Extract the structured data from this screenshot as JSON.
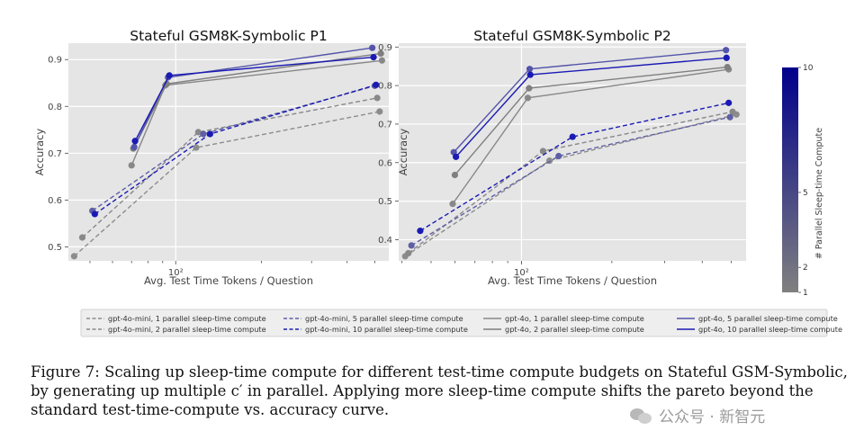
{
  "chart_data": [
    {
      "type": "line",
      "title": "Stateful GSM8K-Symbolic P1",
      "xlabel": "Avg. Test Time Tokens / Question",
      "ylabel": "Accuracy",
      "xscale": "log",
      "xlim": [
        42,
        560
      ],
      "ylim": [
        0.47,
        0.935
      ],
      "yticks": [
        0.5,
        0.6,
        0.7,
        0.8,
        0.9
      ],
      "ytick_labels": [
        "0.5",
        "0.6",
        "0.7",
        "0.8",
        "0.9"
      ],
      "xticks": [
        100
      ],
      "xtick_labels": [
        "10²"
      ],
      "grid": true,
      "series": [
        {
          "name": "gpt-4o-mini, 1 parallel sleep-time compute",
          "style": "dashed",
          "parallel": 1,
          "color": "#8c8c8c",
          "x": [
            44,
            118,
            520
          ],
          "y": [
            0.48,
            0.712,
            0.789
          ]
        },
        {
          "name": "gpt-4o-mini, 2 parallel sleep-time compute",
          "style": "dashed",
          "parallel": 2,
          "color": "#888888",
          "x": [
            47,
            120,
            510
          ],
          "y": [
            0.52,
            0.745,
            0.818
          ]
        },
        {
          "name": "gpt-4o-mini, 5 parallel sleep-time compute",
          "style": "dashed",
          "parallel": 5,
          "color": "#5f5fa6",
          "x": [
            51,
            125,
            500
          ],
          "y": [
            0.577,
            0.741,
            0.844
          ]
        },
        {
          "name": "gpt-4o-mini, 10 parallel sleep-time compute",
          "style": "dashed",
          "parallel": 10,
          "color": "#1a1ab4",
          "x": [
            52,
            132,
            505
          ],
          "y": [
            0.57,
            0.741,
            0.846
          ]
        },
        {
          "name": "gpt-4o, 1 parallel sleep-time compute",
          "style": "solid",
          "parallel": 1,
          "color": "#888888",
          "x": [
            70,
            92,
            530
          ],
          "y": [
            0.674,
            0.845,
            0.898
          ]
        },
        {
          "name": "gpt-4o, 2 parallel sleep-time compute",
          "style": "solid",
          "parallel": 2,
          "color": "#7f7f7f",
          "x": [
            71,
            93,
            525
          ],
          "y": [
            0.71,
            0.848,
            0.913
          ]
        },
        {
          "name": "gpt-4o, 5 parallel sleep-time compute",
          "style": "solid",
          "parallel": 5,
          "color": "#5454aa",
          "x": [
            71.5,
            94,
            490
          ],
          "y": [
            0.713,
            0.862,
            0.925
          ]
        },
        {
          "name": "gpt-4o, 10 parallel sleep-time compute",
          "style": "solid",
          "parallel": 10,
          "color": "#1a1ab4",
          "x": [
            72,
            95,
            495
          ],
          "y": [
            0.726,
            0.866,
            0.905
          ]
        }
      ]
    },
    {
      "type": "line",
      "title": "Stateful GSM8K-Symbolic P2",
      "xlabel": "Avg. Test Time Tokens / Question",
      "ylabel": "Accuracy",
      "xscale": "log",
      "xlim": [
        39,
        560
      ],
      "ylim": [
        0.345,
        0.91
      ],
      "yticks": [
        0.4,
        0.5,
        0.6,
        0.7,
        0.8,
        0.9
      ],
      "ytick_labels": [
        "0.4",
        "0.5",
        "0.6",
        "0.7",
        "0.8",
        "0.9"
      ],
      "xticks": [
        100
      ],
      "xtick_labels": [
        "10²"
      ],
      "grid": true,
      "series": [
        {
          "name": "gpt-4o-mini, 1 parallel sleep-time compute",
          "style": "dashed",
          "parallel": 1,
          "color": "#8c8c8c",
          "x": [
            41,
            124,
            520
          ],
          "y": [
            0.357,
            0.605,
            0.725
          ]
        },
        {
          "name": "gpt-4o-mini, 2 parallel sleep-time compute",
          "style": "dashed",
          "parallel": 2,
          "color": "#888888",
          "x": [
            42,
            118,
            505
          ],
          "y": [
            0.365,
            0.63,
            0.732
          ]
        },
        {
          "name": "gpt-4o-mini, 5 parallel sleep-time compute",
          "style": "dashed",
          "parallel": 5,
          "color": "#5f5fa6",
          "x": [
            43,
            133,
            495
          ],
          "y": [
            0.385,
            0.617,
            0.718
          ]
        },
        {
          "name": "gpt-4o-mini, 10 parallel sleep-time compute",
          "style": "dashed",
          "parallel": 10,
          "color": "#1a1ab4",
          "x": [
            46,
            148,
            490
          ],
          "y": [
            0.423,
            0.667,
            0.755
          ]
        },
        {
          "name": "gpt-4o, 1 parallel sleep-time compute",
          "style": "solid",
          "parallel": 1,
          "color": "#888888",
          "x": [
            59,
            105,
            490
          ],
          "y": [
            0.493,
            0.768,
            0.842
          ]
        },
        {
          "name": "gpt-4o, 2 parallel sleep-time compute",
          "style": "solid",
          "parallel": 2,
          "color": "#7f7f7f",
          "x": [
            60,
            106,
            485
          ],
          "y": [
            0.568,
            0.793,
            0.848
          ]
        },
        {
          "name": "gpt-4o, 5 parallel sleep-time compute",
          "style": "solid",
          "parallel": 5,
          "color": "#5454aa",
          "x": [
            59.5,
            106.5,
            480
          ],
          "y": [
            0.627,
            0.843,
            0.892
          ]
        },
        {
          "name": "gpt-4o, 10 parallel sleep-time compute",
          "style": "solid",
          "parallel": 10,
          "color": "#1a1ab4",
          "x": [
            60.5,
            107,
            482
          ],
          "y": [
            0.615,
            0.828,
            0.872
          ]
        }
      ]
    }
  ],
  "legend": {
    "placement": "bottom-center",
    "items": [
      {
        "label": "gpt-4o-mini, 1 parallel sleep-time compute",
        "style": "dashed",
        "color": "#8c8c8c"
      },
      {
        "label": "gpt-4o-mini, 2 parallel sleep-time compute",
        "style": "dashed",
        "color": "#888888"
      },
      {
        "label": "gpt-4o-mini, 5 parallel sleep-time compute",
        "style": "dashed",
        "color": "#5f5fa6"
      },
      {
        "label": "gpt-4o-mini, 10 parallel sleep-time compute",
        "style": "dashed",
        "color": "#1a1ab4"
      },
      {
        "label": "gpt-4o, 1 parallel sleep-time compute",
        "style": "solid",
        "color": "#888888"
      },
      {
        "label": "gpt-4o, 2 parallel sleep-time compute",
        "style": "solid",
        "color": "#7f7f7f"
      },
      {
        "label": "gpt-4o, 5 parallel sleep-time compute",
        "style": "solid",
        "color": "#5454aa"
      },
      {
        "label": "gpt-4o, 10 parallel sleep-time compute",
        "style": "solid",
        "color": "#1a1ab4"
      }
    ]
  },
  "colorbar": {
    "label": "# Parallel Sleep-time Compute",
    "ticks": [
      1,
      2,
      5,
      10
    ],
    "tick_labels": [
      "1",
      "2",
      "5",
      "10"
    ],
    "color_low": "#808080",
    "color_high": "#00008b"
  },
  "caption": {
    "lines": [
      "Figure 7: Scaling up sleep-time compute for different test-time compute budgets on Stateful GSM-Symbolic,",
      "by generating up multiple c′ in parallel. Applying more sleep-time compute shifts the pareto beyond the",
      "standard test-time-compute vs. accuracy curve."
    ]
  },
  "watermark": {
    "text": "公众号 · 新智元",
    "icon": "wechat-icon"
  },
  "colors": {
    "plot_background": "#e5e5e5",
    "grid": "#ffffff"
  }
}
